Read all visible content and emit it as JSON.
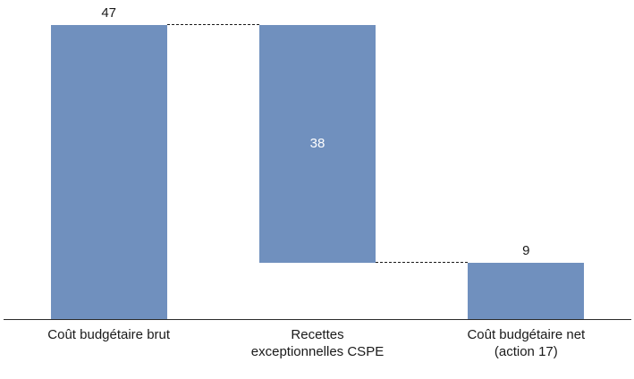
{
  "chart_data": {
    "type": "bar",
    "subtype": "waterfall",
    "title": "",
    "xlabel": "",
    "ylabel": "",
    "ylim": [
      0,
      50
    ],
    "grid": false,
    "legend": false,
    "bar_color": "#7090BE",
    "axis_color": "#2B2B2B",
    "categories": [
      "Coût budgétaire brut",
      "Recettes\nexceptionnelles CSPE",
      "Coût budgétaire net\n(action 17)"
    ],
    "series": [
      {
        "name": "Montant",
        "values": [
          47,
          38,
          9
        ]
      }
    ],
    "bars": [
      {
        "category": "Coût budgétaire brut",
        "start": 0,
        "end": 47,
        "label": "47",
        "label_position": "above",
        "label_color": "#1a1a1a"
      },
      {
        "category": "Recettes exceptionnelles CSPE",
        "start": 9,
        "end": 47,
        "label": "38",
        "label_position": "inside",
        "label_color": "#ffffff"
      },
      {
        "category": "Coût budgétaire net (action 17)",
        "start": 0,
        "end": 9,
        "label": "9",
        "label_position": "above",
        "label_color": "#1a1a1a"
      }
    ],
    "connectors": [
      {
        "from_bar": 0,
        "to_bar": 1,
        "value": 47
      },
      {
        "from_bar": 1,
        "to_bar": 2,
        "value": 9
      }
    ]
  }
}
